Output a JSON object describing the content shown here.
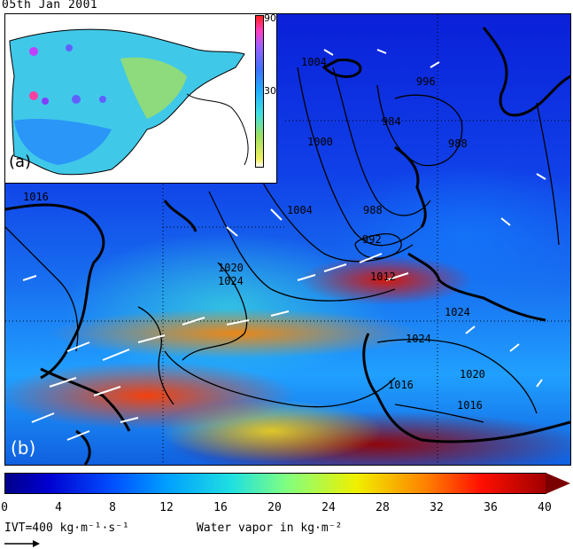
{
  "date_label": "05th Jan 2001",
  "panels": {
    "inset_label": "(a)",
    "main_label": "(b)"
  },
  "inset_colorbar": {
    "ticks": [
      "90",
      "30"
    ]
  },
  "isobars": [
    "1016",
    "1004",
    "1000",
    "996",
    "984",
    "988",
    "988",
    "992",
    "1012",
    "1020",
    "1024",
    "1024",
    "1024",
    "1020",
    "1016",
    "1016"
  ],
  "colorbar": {
    "ticks": [
      "0",
      "4",
      "8",
      "12",
      "16",
      "20",
      "24",
      "28",
      "32",
      "36",
      "40"
    ],
    "colors": [
      "#00008a",
      "#0000d0",
      "#0050ff",
      "#00a0ff",
      "#20e0e0",
      "#80ff80",
      "#f0f000",
      "#ff8000",
      "#ff1000",
      "#a00000"
    ]
  },
  "legend": {
    "ivt_label": "IVT=400 kg·m⁻¹·s⁻¹",
    "wv_label": "Water vapor in kg·m⁻²"
  }
}
